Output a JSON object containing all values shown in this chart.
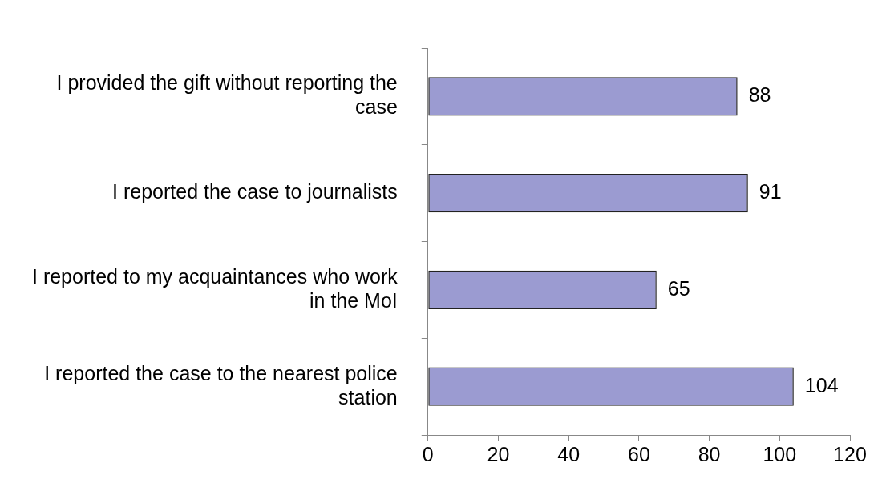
{
  "chart_data": {
    "type": "bar",
    "orientation": "horizontal",
    "categories": [
      "I provided the gift without reporting the case",
      "I reported the case to journalists",
      "I reported to my acquaintances who work in the MoI",
      "I reported the case to the nearest police station"
    ],
    "values": [
      88,
      91,
      65,
      104
    ],
    "color": "#9b9bd1",
    "xlim": [
      0,
      120
    ],
    "xticks": [
      0,
      20,
      40,
      60,
      80,
      100,
      120
    ],
    "data_labels": true,
    "grid": false,
    "legend": false
  }
}
